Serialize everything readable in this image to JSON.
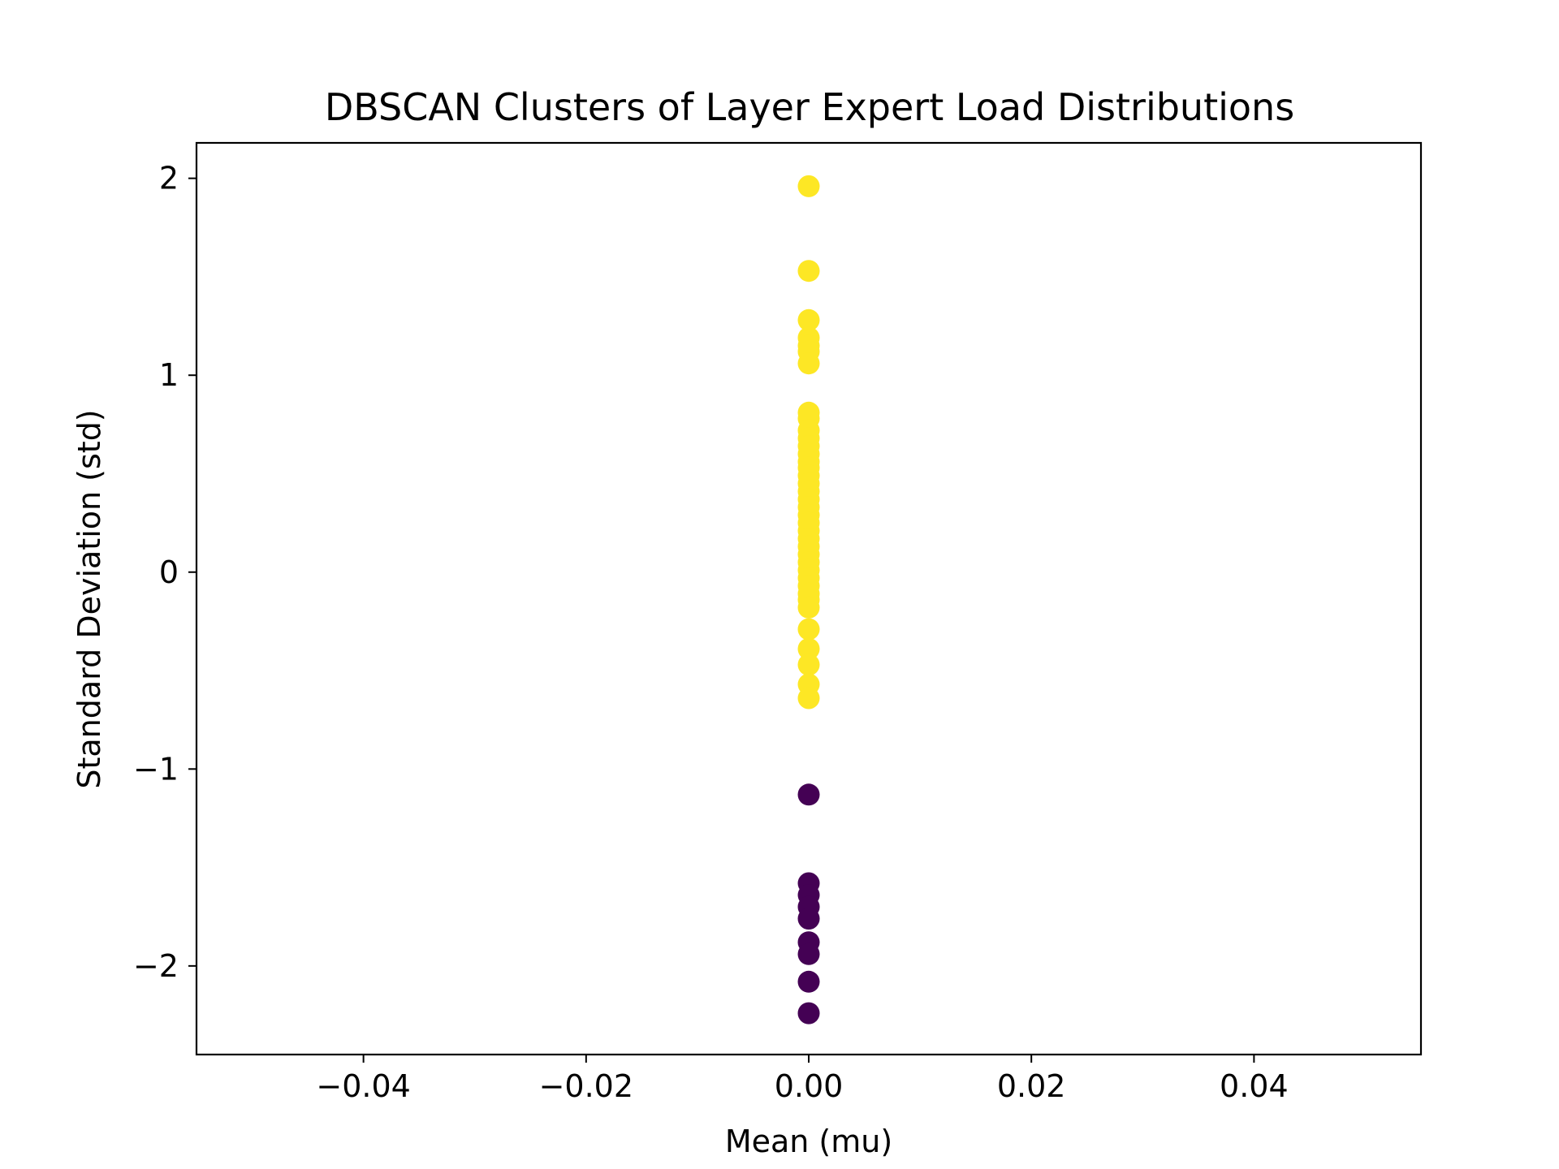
{
  "chart_data": {
    "type": "scatter",
    "title": "DBSCAN Clusters of Layer Expert Load Distributions",
    "xlabel": "Mean (mu)",
    "ylabel": "Standard Deviation (std)",
    "xlim": [
      -0.055,
      0.055
    ],
    "ylim": [
      -2.45,
      2.18
    ],
    "xticks": [
      -0.04,
      -0.02,
      0.0,
      0.02,
      0.04
    ],
    "xtick_labels": [
      "−0.04",
      "−0.02",
      "0.00",
      "0.02",
      "0.04"
    ],
    "yticks": [
      2,
      1,
      0,
      -1,
      -2
    ],
    "ytick_labels": [
      "2",
      "1",
      "0",
      "−1",
      "−2"
    ],
    "grid": false,
    "series": [
      {
        "color": "#fde725",
        "points": [
          [
            0,
            1.96
          ],
          [
            0,
            1.53
          ],
          [
            0,
            1.28
          ],
          [
            0,
            1.19
          ],
          [
            0,
            1.15
          ],
          [
            0,
            1.12
          ],
          [
            0,
            1.06
          ],
          [
            0,
            0.81
          ],
          [
            0,
            0.78
          ],
          [
            0,
            0.72
          ],
          [
            0,
            0.68
          ],
          [
            0,
            0.64
          ],
          [
            0,
            0.6
          ],
          [
            0,
            0.56
          ],
          [
            0,
            0.53
          ],
          [
            0,
            0.49
          ],
          [
            0,
            0.45
          ],
          [
            0,
            0.41
          ],
          [
            0,
            0.37
          ],
          [
            0,
            0.33
          ],
          [
            0,
            0.29
          ],
          [
            0,
            0.25
          ],
          [
            0,
            0.21
          ],
          [
            0,
            0.17
          ],
          [
            0,
            0.13
          ],
          [
            0,
            0.09
          ],
          [
            0,
            0.05
          ],
          [
            0,
            0.01
          ],
          [
            0,
            -0.03
          ],
          [
            0,
            -0.07
          ],
          [
            0,
            -0.11
          ],
          [
            0,
            -0.14
          ],
          [
            0,
            -0.18
          ],
          [
            0,
            -0.29
          ],
          [
            0,
            -0.39
          ],
          [
            0,
            -0.47
          ],
          [
            0,
            -0.57
          ],
          [
            0,
            -0.64
          ]
        ]
      },
      {
        "color": "#440154",
        "points": [
          [
            0,
            -1.13
          ],
          [
            0,
            -1.58
          ],
          [
            0,
            -1.64
          ],
          [
            0,
            -1.7
          ],
          [
            0,
            -1.76
          ],
          [
            0,
            -1.88
          ],
          [
            0,
            -1.94
          ],
          [
            0,
            -2.08
          ],
          [
            0,
            -2.24
          ]
        ]
      }
    ]
  }
}
